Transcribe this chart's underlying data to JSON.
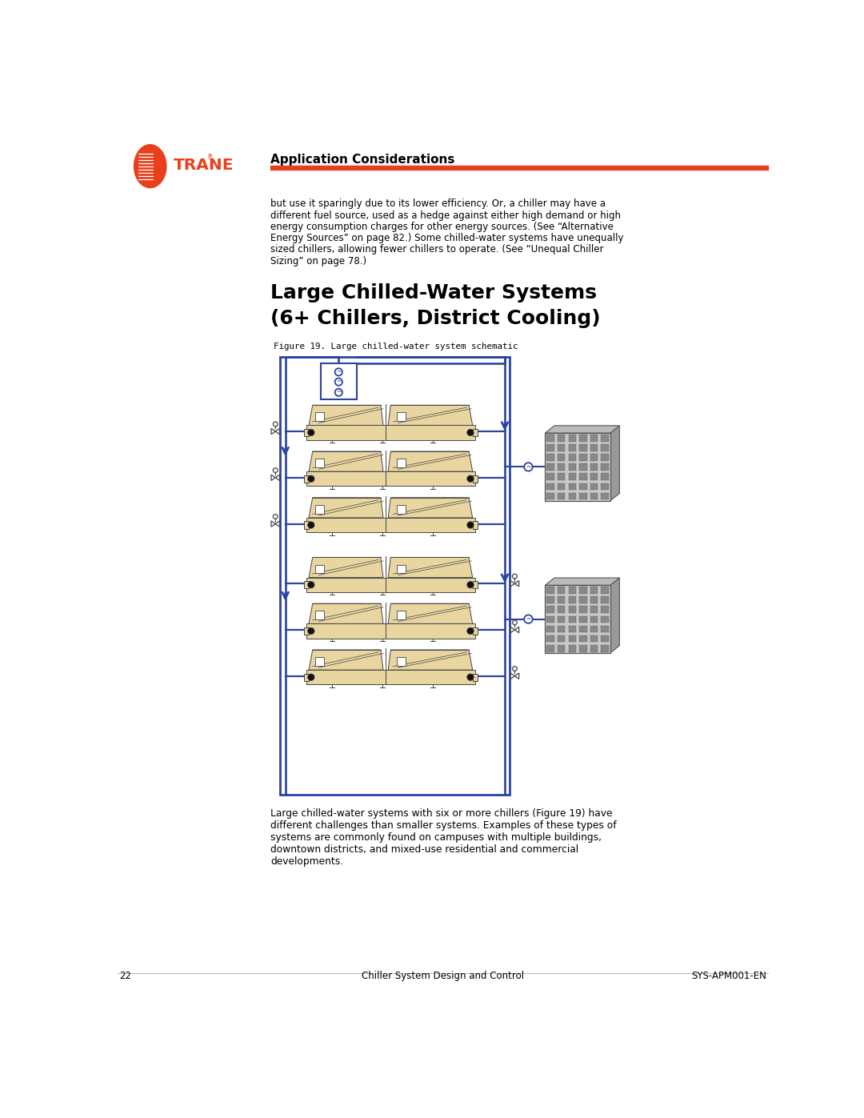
{
  "page_width": 10.8,
  "page_height": 13.97,
  "bg_color": "#ffffff",
  "header_text": "Application Considerations",
  "header_line_color": "#e8401c",
  "trane_orange": "#e8401c",
  "body_text_1": "but use it sparingly due to its lower efficiency. Or, a chiller may have a\ndifferent fuel source, used as a hedge against either high demand or high\nenergy consumption charges for other energy sources. (See “Alternative\nEnergy Sources” on page 82.) Some chilled-water systems have unequally\nsized chillers, allowing fewer chillers to operate. (See “Unequal Chiller\nSizing” on page 78.)",
  "section_title_1": "Large Chilled-Water Systems",
  "section_title_2": "(6+ Chillers, District Cooling)",
  "figure_caption": "Figure 19. Large chilled-water system schematic",
  "body_text_2": "Large chilled-water systems with six or more chillers (Figure 19) have\ndifferent challenges than smaller systems. Examples of these types of\nsystems are commonly found on campuses with multiple buildings,\ndowntown districts, and mixed-use residential and commercial\ndevelopments.",
  "footer_page": "22",
  "footer_center": "Chiller System Design and Control",
  "footer_right": "SYS-APM001-EN",
  "diagram_line_color": "#2b44a0",
  "chiller_fill": "#e8d5a0",
  "chiller_stroke": "#444444",
  "building_fill": "#b0b0b0",
  "building_dark": "#888888",
  "building_window": "#888888"
}
